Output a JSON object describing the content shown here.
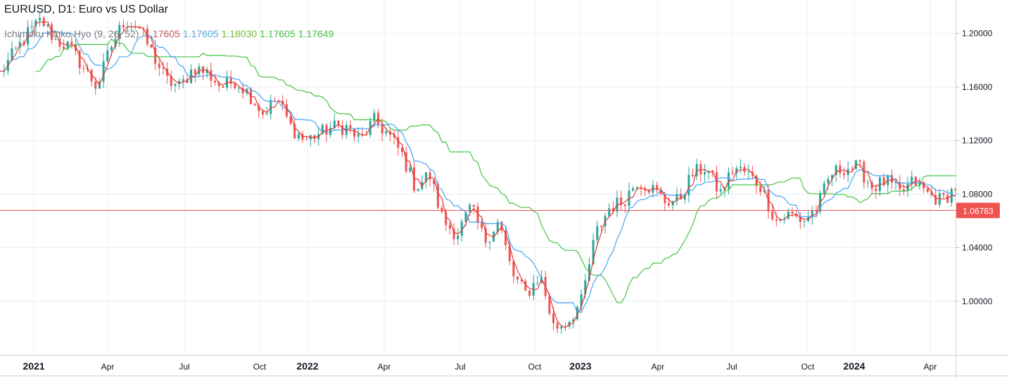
{
  "legend": {
    "title": "EURUSD, D1: Euro vs US Dollar",
    "indicator_name": "Ichimoku Kinko Hyo (9, 26, 52)",
    "indicator_values": [
      "1.17605",
      "1.17605",
      "1.18030",
      "1.17605",
      "1.17649"
    ]
  },
  "colors": {
    "up_candle": "#26a69a",
    "down_candle": "#ef5350",
    "tenkan": "#e53935",
    "kijun": "#42a5f5",
    "span_b": "#43c443",
    "hline": "#ef5350",
    "value_tag_bg": "#ef5350",
    "grid": "#e9ecf2",
    "axis_text": "#131722"
  },
  "chart_data": {
    "type": "candlestick",
    "symbol": "EURUSD",
    "timeframe": "D1",
    "title": "EURUSD, D1: Euro vs US Dollar",
    "indicator": "Ichimoku Kinko Hyo (9, 26, 52)",
    "y_ticks": [
      "1.20000",
      "1.16000",
      "1.12000",
      "1.08000",
      "1.04000",
      "1.00000"
    ],
    "ylim": [
      0.96,
      1.225
    ],
    "x_ticks": [
      {
        "label": "2021",
        "bold": true
      },
      {
        "label": "Apr",
        "bold": false
      },
      {
        "label": "Jul",
        "bold": false
      },
      {
        "label": "Oct",
        "bold": false
      },
      {
        "label": "2022",
        "bold": true
      },
      {
        "label": "Apr",
        "bold": false
      },
      {
        "label": "Jul",
        "bold": false
      },
      {
        "label": "Oct",
        "bold": false
      },
      {
        "label": "2023",
        "bold": true
      },
      {
        "label": "Apr",
        "bold": false
      },
      {
        "label": "Jul",
        "bold": false
      },
      {
        "label": "Oct",
        "bold": false
      },
      {
        "label": "2024",
        "bold": true
      },
      {
        "label": "Apr",
        "bold": false
      }
    ],
    "close_series": [
      1.17,
      1.185,
      1.2,
      1.21,
      1.195,
      1.19,
      1.175,
      1.16,
      1.19,
      1.21,
      1.205,
      1.185,
      1.165,
      1.16,
      1.175,
      1.17,
      1.16,
      1.165,
      1.155,
      1.14,
      1.152,
      1.13,
      1.12,
      1.125,
      1.13,
      1.13,
      1.12,
      1.135,
      1.125,
      1.11,
      1.085,
      1.095,
      1.06,
      1.05,
      1.07,
      1.045,
      1.06,
      1.02,
      1.005,
      1.02,
      0.98,
      0.985,
      1.0,
      1.05,
      1.07,
      1.075,
      1.09,
      1.085,
      1.075,
      1.075,
      1.095,
      1.1,
      1.08,
      1.1,
      1.095,
      1.085,
      1.06,
      1.065,
      1.06,
      1.07,
      1.095,
      1.1,
      1.1,
      1.085,
      1.09,
      1.08,
      1.09,
      1.08,
      1.075,
      1.085
    ],
    "last_price": 1.06783,
    "horizontal_line": {
      "value": 1.06783,
      "label": "1.06783"
    }
  }
}
